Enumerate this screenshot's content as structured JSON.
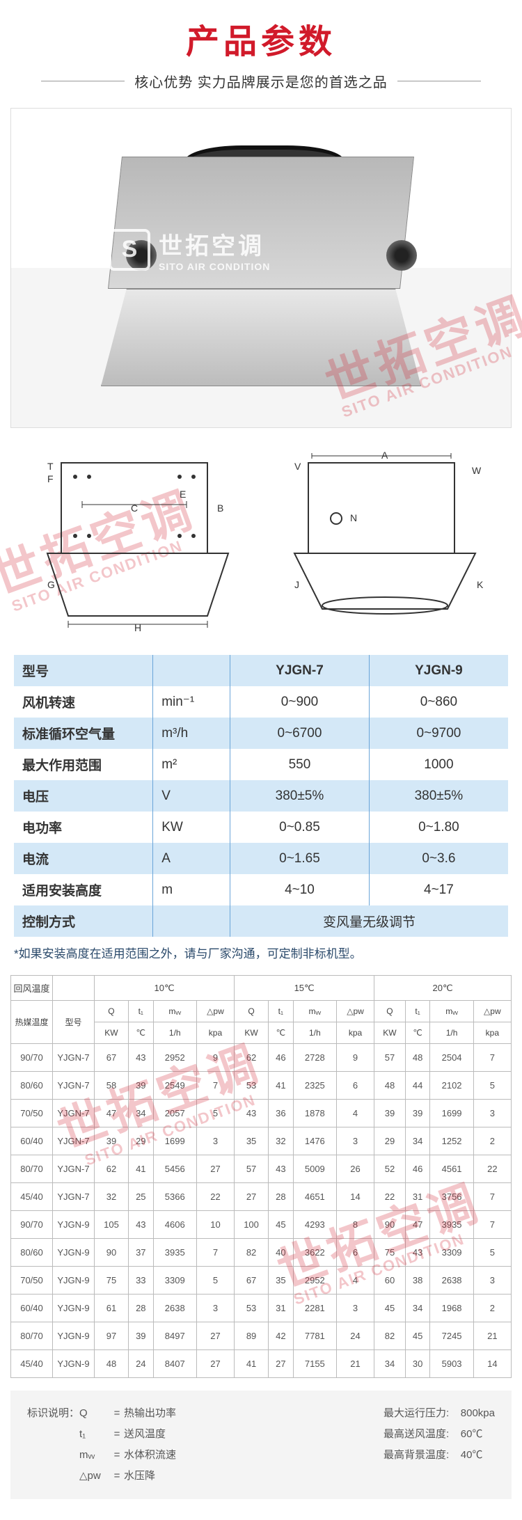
{
  "header": {
    "title": "产品参数",
    "subtitle": "核心优势 实力品牌展示是您的首选之品"
  },
  "brand": {
    "cn": "世拓空调",
    "en": "SITO AIR CONDITION",
    "logo_letter": "S"
  },
  "diagram_labels": {
    "left": [
      "T",
      "F",
      "C",
      "E",
      "B",
      "G",
      "H"
    ],
    "right": [
      "V",
      "A",
      "W",
      "N",
      "J",
      "K"
    ]
  },
  "spec": {
    "headers": {
      "label": "型号",
      "m1": "YJGN-7",
      "m2": "YJGN-9"
    },
    "rows": [
      {
        "label": "风机转速",
        "unit": "min⁻¹",
        "v1": "0~900",
        "v2": "0~860"
      },
      {
        "label": "标准循环空气量",
        "unit": "m³/h",
        "v1": "0~6700",
        "v2": "0~9700"
      },
      {
        "label": "最大作用范围",
        "unit": "m²",
        "v1": "550",
        "v2": "1000"
      },
      {
        "label": "电压",
        "unit": "V",
        "v1": "380±5%",
        "v2": "380±5%"
      },
      {
        "label": "电功率",
        "unit": "KW",
        "v1": "0~0.85",
        "v2": "0~1.80"
      },
      {
        "label": "电流",
        "unit": "A",
        "v1": "0~1.65",
        "v2": "0~3.6"
      },
      {
        "label": "适用安装高度",
        "unit": "m",
        "v1": "4~10",
        "v2": "4~17"
      }
    ],
    "control": {
      "label": "控制方式",
      "value": "变风量无级调节"
    },
    "note": "*如果安装高度在适用范围之外，请与厂家沟通，可定制非标机型。"
  },
  "perf": {
    "top_left": "回风温度",
    "bottom_left1": "热媒温度",
    "bottom_left2": "型号",
    "temps": [
      "10℃",
      "15℃",
      "20℃"
    ],
    "cols": [
      "Q",
      "t₁",
      "mᵥᵥ",
      "△pw"
    ],
    "col_units": [
      "KW",
      "℃",
      "1/h",
      "kpa"
    ],
    "rows": [
      {
        "t": "90/70",
        "m": "YJGN-7",
        "d": [
          67,
          43,
          2952,
          9,
          62,
          46,
          2728,
          9,
          57,
          48,
          2504,
          7
        ]
      },
      {
        "t": "80/60",
        "m": "YJGN-7",
        "d": [
          58,
          39,
          2549,
          7,
          53,
          41,
          2325,
          6,
          48,
          44,
          2102,
          5
        ]
      },
      {
        "t": "70/50",
        "m": "YJGN-7",
        "d": [
          47,
          34,
          2057,
          5,
          43,
          36,
          1878,
          4,
          39,
          39,
          1699,
          3
        ]
      },
      {
        "t": "60/40",
        "m": "YJGN-7",
        "d": [
          39,
          29,
          1699,
          3,
          35,
          32,
          1476,
          3,
          29,
          34,
          1252,
          2
        ]
      },
      {
        "t": "80/70",
        "m": "YJGN-7",
        "d": [
          62,
          41,
          5456,
          27,
          57,
          43,
          5009,
          26,
          52,
          46,
          4561,
          22
        ]
      },
      {
        "t": "45/40",
        "m": "YJGN-7",
        "d": [
          32,
          25,
          5366,
          22,
          27,
          28,
          4651,
          14,
          22,
          31,
          3756,
          7
        ]
      },
      {
        "t": "90/70",
        "m": "YJGN-9",
        "d": [
          105,
          43,
          4606,
          10,
          100,
          45,
          4293,
          8,
          90,
          47,
          3935,
          7
        ]
      },
      {
        "t": "80/60",
        "m": "YJGN-9",
        "d": [
          90,
          37,
          3935,
          7,
          82,
          40,
          3622,
          6,
          75,
          43,
          3309,
          5
        ]
      },
      {
        "t": "70/50",
        "m": "YJGN-9",
        "d": [
          75,
          33,
          3309,
          5,
          67,
          35,
          2952,
          4,
          60,
          38,
          2638,
          3
        ]
      },
      {
        "t": "60/40",
        "m": "YJGN-9",
        "d": [
          61,
          28,
          2638,
          3,
          53,
          31,
          2281,
          3,
          45,
          34,
          1968,
          2
        ]
      },
      {
        "t": "80/70",
        "m": "YJGN-9",
        "d": [
          97,
          39,
          8497,
          27,
          89,
          42,
          7781,
          24,
          82,
          45,
          7245,
          21
        ]
      },
      {
        "t": "45/40",
        "m": "YJGN-9",
        "d": [
          48,
          24,
          8407,
          27,
          41,
          27,
          7155,
          21,
          34,
          30,
          5903,
          14
        ]
      }
    ]
  },
  "legend": {
    "intro": "标识说明：",
    "left": [
      {
        "k": "Q",
        "v": "热输出功率"
      },
      {
        "k": "t₁",
        "v": "送风温度"
      },
      {
        "k": "mᵥᵥ",
        "v": "水体积流速"
      },
      {
        "k": "△pw",
        "v": "水压降"
      }
    ],
    "right": [
      {
        "k": "最大运行压力:",
        "v": "800kpa"
      },
      {
        "k": "最高送风温度:",
        "v": "60℃"
      },
      {
        "k": "最高背景温度:",
        "v": "40℃"
      }
    ]
  }
}
